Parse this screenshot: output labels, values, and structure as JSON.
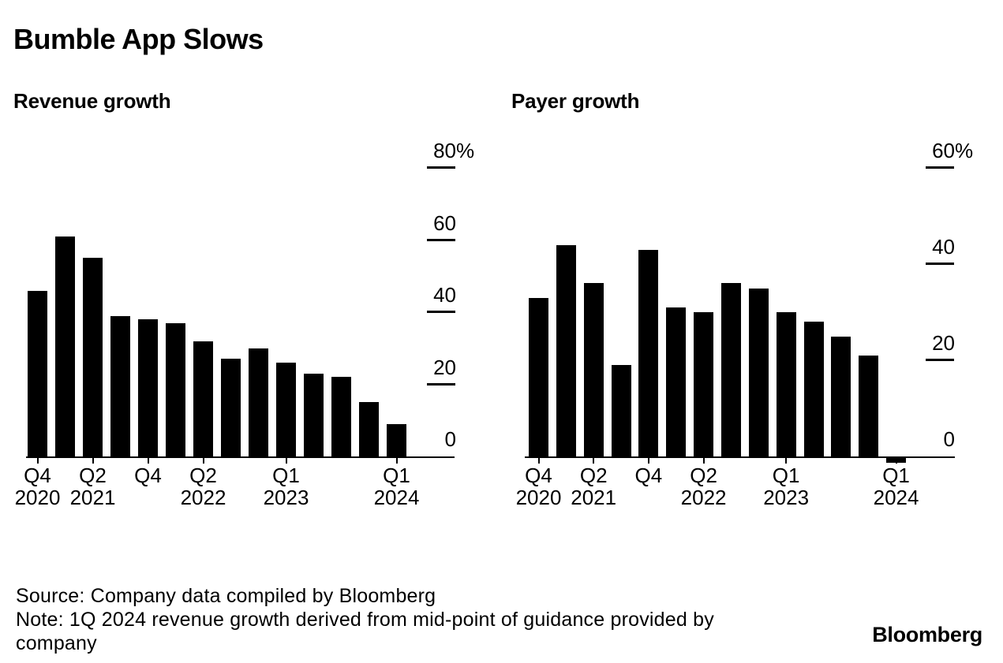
{
  "title": "Bumble App Slows",
  "footer": {
    "source_line": "Source: Company data compiled by Bloomberg",
    "note_line1": "Note: 1Q 2024 revenue growth derived from mid-point of guidance provided by",
    "note_line2": "company",
    "brand": "Bloomberg"
  },
  "colors": {
    "background": "#ffffff",
    "bar": "#000000",
    "text": "#000000",
    "axis": "#000000"
  },
  "chart_data": [
    {
      "type": "bar",
      "title": "Revenue growth",
      "unit": "%",
      "grid": false,
      "legend": "none",
      "yaxis_side": "right",
      "ylim": [
        0,
        80
      ],
      "categories": [
        "Q4 2020",
        "Q1 2021",
        "Q2 2021",
        "Q3 2021",
        "Q4 2021",
        "Q1 2022",
        "Q2 2022",
        "Q3 2022",
        "Q4 2022",
        "Q1 2023",
        "Q2 2023",
        "Q3 2023",
        "Q4 2023",
        "Q1 2024"
      ],
      "values": [
        46,
        61,
        55,
        39,
        38,
        37,
        32,
        27,
        30,
        26,
        23,
        22,
        15,
        9
      ],
      "yticks": [
        {
          "value": 80,
          "label": "80",
          "suffix": "%"
        },
        {
          "value": 60,
          "label": "60",
          "suffix": ""
        },
        {
          "value": 40,
          "label": "40",
          "suffix": ""
        },
        {
          "value": 20,
          "label": "20",
          "suffix": ""
        },
        {
          "value": 0,
          "label": "0",
          "suffix": ""
        }
      ],
      "xticks": [
        {
          "index": 0,
          "line1": "Q4",
          "line2": "2020"
        },
        {
          "index": 2,
          "line1": "Q2",
          "line2": "2021"
        },
        {
          "index": 4,
          "line1": "Q4",
          "line2": ""
        },
        {
          "index": 6,
          "line1": "Q2",
          "line2": "2022"
        },
        {
          "index": 9,
          "line1": "Q1",
          "line2": "2023"
        },
        {
          "index": 13,
          "line1": "Q1",
          "line2": "2024"
        }
      ]
    },
    {
      "type": "bar",
      "title": "Payer growth",
      "unit": "%",
      "grid": false,
      "legend": "none",
      "yaxis_side": "right",
      "ylim": [
        -2,
        60
      ],
      "categories": [
        "Q4 2020",
        "Q1 2021",
        "Q2 2021",
        "Q3 2021",
        "Q4 2021",
        "Q1 2022",
        "Q2 2022",
        "Q3 2022",
        "Q4 2022",
        "Q1 2023",
        "Q2 2023",
        "Q3 2023",
        "Q4 2023",
        "Q1 2024"
      ],
      "values": [
        33,
        44,
        36,
        19,
        43,
        31,
        30,
        36,
        35,
        30,
        28,
        25,
        21,
        -1
      ],
      "yticks": [
        {
          "value": 60,
          "label": "60",
          "suffix": "%"
        },
        {
          "value": 40,
          "label": "40",
          "suffix": ""
        },
        {
          "value": 20,
          "label": "20",
          "suffix": ""
        },
        {
          "value": 0,
          "label": "0",
          "suffix": ""
        }
      ],
      "xticks": [
        {
          "index": 0,
          "line1": "Q4",
          "line2": "2020"
        },
        {
          "index": 2,
          "line1": "Q2",
          "line2": "2021"
        },
        {
          "index": 4,
          "line1": "Q4",
          "line2": ""
        },
        {
          "index": 6,
          "line1": "Q2",
          "line2": "2022"
        },
        {
          "index": 9,
          "line1": "Q1",
          "line2": "2023"
        },
        {
          "index": 13,
          "line1": "Q1",
          "line2": "2024"
        }
      ]
    }
  ]
}
